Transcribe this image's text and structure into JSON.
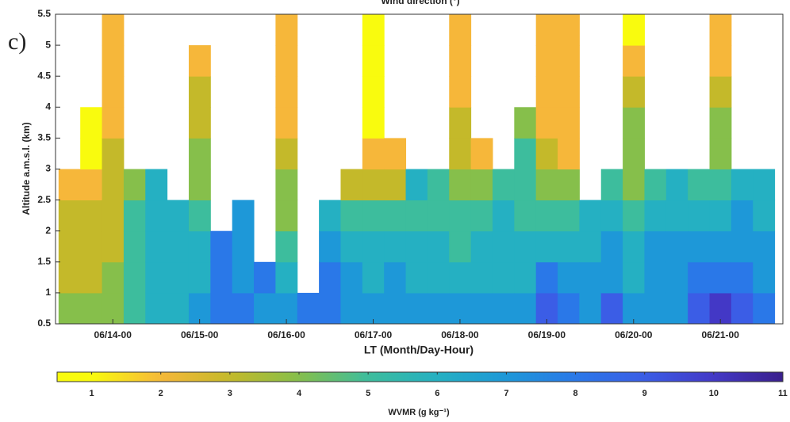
{
  "chart_data": {
    "type": "heatmap",
    "title": "Wind direction (°)",
    "panel_label": "c)",
    "xlabel": "LT (Month/Day-Hour)",
    "ylabel": "Altitude a.m.s.l. (km)",
    "colorbar_label": "WVMR (g kg⁻¹)",
    "xlim": [
      13.34,
      21.72
    ],
    "xticks": [
      {
        "value": 14,
        "label": "06/14-00"
      },
      {
        "value": 15,
        "label": "06/15-00"
      },
      {
        "value": 16,
        "label": "06/16-00"
      },
      {
        "value": 17,
        "label": "06/17-00"
      },
      {
        "value": 18,
        "label": "06/18-00"
      },
      {
        "value": 19,
        "label": "06/19-00"
      },
      {
        "value": 20,
        "label": "06/20-00"
      },
      {
        "value": 21,
        "label": "06/21-00"
      }
    ],
    "ylim": [
      0.5,
      5.5
    ],
    "yticks": [
      0.5,
      1,
      1.5,
      2,
      2.5,
      3,
      3.5,
      4,
      4.5,
      5,
      5.5
    ],
    "clim": [
      0.5,
      11
    ],
    "cticks": [
      1,
      2,
      3,
      4,
      5,
      6,
      7,
      8,
      9,
      10,
      11
    ],
    "colormap": [
      "#f9fb0e",
      "#f6b73a",
      "#c4b92a",
      "#86bf4b",
      "#3dbd9d",
      "#25b0c2",
      "#1e98d8",
      "#2a78e8",
      "#3b5de6",
      "#4338c6",
      "#3a1f8c"
    ],
    "x": [
      13.5,
      13.75,
      14,
      14.25,
      14.5,
      14.75,
      15,
      15.25,
      15.5,
      15.75,
      16,
      16.25,
      16.5,
      16.75,
      17,
      17.25,
      17.5,
      17.75,
      18,
      18.25,
      18.5,
      18.75,
      19,
      19.25,
      19.5,
      19.75,
      20,
      20.25,
      20.5,
      20.75,
      21,
      21.25,
      21.5
    ],
    "y": [
      0.75,
      1.25,
      1.75,
      2.25,
      2.75,
      3.25,
      3.75,
      4.25,
      4.75,
      5.25
    ],
    "z": [
      [
        4,
        3,
        3,
        3,
        2,
        null,
        null,
        null,
        null,
        null
      ],
      [
        4,
        3,
        3,
        3,
        2,
        1,
        1,
        null,
        null,
        null
      ],
      [
        4,
        4,
        3,
        3,
        3,
        3,
        2,
        2,
        2,
        2
      ],
      [
        5,
        5,
        5,
        5,
        4,
        null,
        null,
        null,
        null,
        null
      ],
      [
        6,
        6,
        6,
        6,
        6,
        null,
        null,
        null,
        null,
        null
      ],
      [
        6,
        6,
        6,
        6,
        null,
        null,
        null,
        null,
        null,
        null
      ],
      [
        7,
        6,
        6,
        5,
        4,
        4,
        3,
        3,
        2,
        null
      ],
      [
        8,
        8,
        8,
        null,
        null,
        null,
        null,
        null,
        null,
        null
      ],
      [
        8,
        7,
        7,
        7,
        null,
        null,
        null,
        null,
        null,
        null
      ],
      [
        7,
        8,
        null,
        null,
        null,
        null,
        null,
        null,
        null,
        null
      ],
      [
        7,
        6,
        5,
        4,
        4,
        3,
        2,
        2,
        2,
        2
      ],
      [
        8,
        null,
        null,
        null,
        null,
        null,
        null,
        null,
        null,
        null
      ],
      [
        8,
        8,
        7,
        6,
        null,
        null,
        null,
        null,
        null,
        null
      ],
      [
        7,
        7,
        6,
        5,
        3,
        null,
        null,
        null,
        null,
        null
      ],
      [
        7,
        6,
        6,
        5,
        3,
        2,
        1,
        1,
        1,
        1
      ],
      [
        7,
        7,
        6,
        5,
        3,
        2,
        null,
        null,
        null,
        null
      ],
      [
        7,
        6,
        6,
        5,
        6,
        null,
        null,
        null,
        null,
        null
      ],
      [
        7,
        6,
        6,
        5,
        5,
        null,
        null,
        null,
        null,
        null
      ],
      [
        7,
        6,
        5,
        5,
        4,
        3,
        3,
        2,
        2,
        2
      ],
      [
        7,
        6,
        6,
        5,
        4,
        2,
        null,
        null,
        null,
        null
      ],
      [
        7,
        6,
        6,
        6,
        5,
        null,
        null,
        null,
        null,
        null
      ],
      [
        7,
        6,
        6,
        5,
        5,
        5,
        4,
        null,
        null,
        null
      ],
      [
        9,
        8,
        6,
        5,
        4,
        3,
        2,
        2,
        2,
        2
      ],
      [
        8,
        7,
        6,
        5,
        4,
        2,
        2,
        2,
        2,
        2
      ],
      [
        7,
        7,
        6,
        6,
        null,
        null,
        null,
        null,
        null,
        null
      ],
      [
        9,
        7,
        7,
        6,
        5,
        null,
        null,
        null,
        null,
        null
      ],
      [
        7,
        6,
        6,
        5,
        4,
        4,
        4,
        3,
        2,
        1
      ],
      [
        7,
        7,
        7,
        6,
        5,
        null,
        null,
        null,
        null,
        null
      ],
      [
        7,
        7,
        7,
        6,
        6,
        null,
        null,
        null,
        null,
        null
      ],
      [
        9,
        8,
        7,
        6,
        5,
        null,
        null,
        null,
        null,
        null
      ],
      [
        10,
        8,
        7,
        6,
        5,
        4,
        4,
        3,
        2,
        2
      ],
      [
        9,
        8,
        7,
        7,
        6,
        null,
        null,
        null,
        null,
        null
      ],
      [
        8,
        7,
        7,
        6,
        6,
        null,
        null,
        null,
        null,
        null
      ]
    ]
  }
}
